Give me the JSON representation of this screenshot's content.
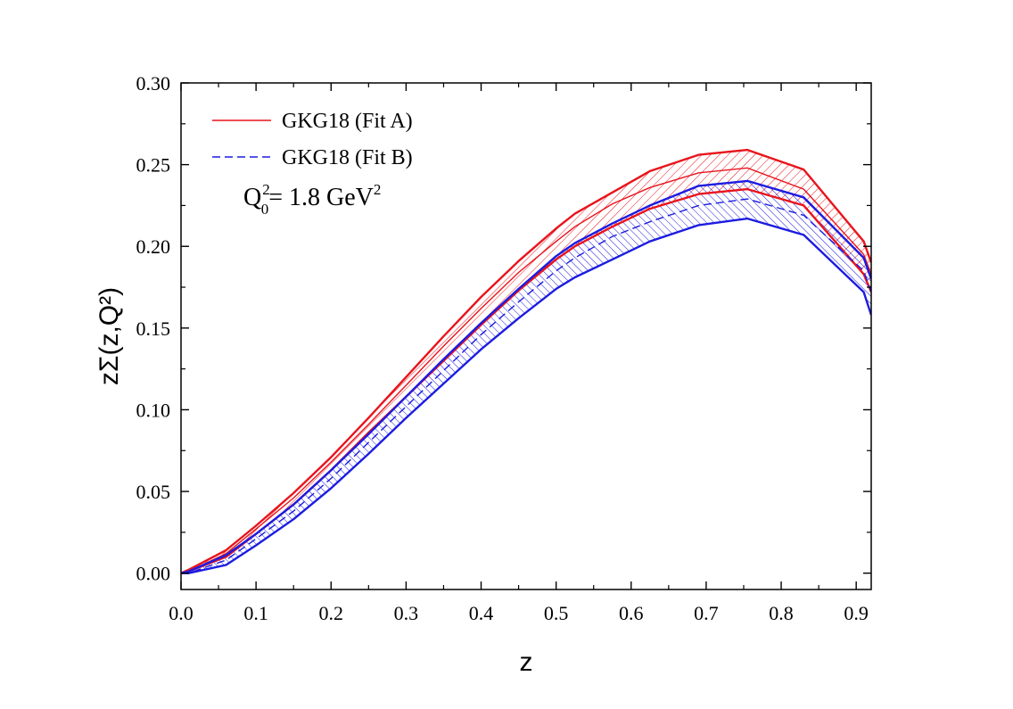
{
  "chart_data": {
    "type": "line",
    "xlabel": "z",
    "ylabel": "zΣ(z,Q²)",
    "xlim": [
      0.0,
      0.92
    ],
    "ylim": [
      -0.01,
      0.3
    ],
    "xticks": [
      "0.0",
      "0.1",
      "0.2",
      "0.3",
      "0.4",
      "0.5",
      "0.6",
      "0.7",
      "0.8",
      "0.9"
    ],
    "yticks": [
      "0.00",
      "0.05",
      "0.10",
      "0.15",
      "0.20",
      "0.25",
      "0.30"
    ],
    "grid": false,
    "legend_position": "top-left",
    "annotation": {
      "prefix": "Q",
      "superscript": "2",
      "subscript": "0",
      "value": "= 1.8 GeV",
      "value_superscript": "2"
    },
    "x": [
      0.0,
      0.01,
      0.06,
      0.1,
      0.15,
      0.2,
      0.25,
      0.3,
      0.35,
      0.4,
      0.45,
      0.5,
      0.525,
      0.575,
      0.625,
      0.69,
      0.755,
      0.83,
      0.91,
      0.92
    ],
    "series": [
      {
        "name": "GKG18 (Fit A)",
        "color": "#e8141c",
        "style": "solid",
        "central": [
          0.0,
          0.001,
          0.012,
          0.027,
          0.046,
          0.068,
          0.091,
          0.115,
          0.139,
          0.162,
          0.184,
          0.203,
          0.212,
          0.226,
          0.236,
          0.245,
          0.248,
          0.235,
          0.195,
          0.183
        ],
        "upper": [
          0.0,
          0.002,
          0.014,
          0.029,
          0.049,
          0.071,
          0.095,
          0.12,
          0.145,
          0.169,
          0.191,
          0.211,
          0.22,
          0.233,
          0.246,
          0.256,
          0.259,
          0.247,
          0.203,
          0.19
        ],
        "lower": [
          0.0,
          0.001,
          0.01,
          0.024,
          0.042,
          0.063,
          0.086,
          0.108,
          0.13,
          0.152,
          0.173,
          0.192,
          0.2,
          0.212,
          0.223,
          0.232,
          0.235,
          0.225,
          0.183,
          0.172
        ]
      },
      {
        "name": "GKG18 (Fit B)",
        "color": "#1c1ce0",
        "style": "dashed",
        "central": [
          0.0,
          0.0,
          0.008,
          0.021,
          0.038,
          0.058,
          0.08,
          0.102,
          0.124,
          0.146,
          0.166,
          0.185,
          0.193,
          0.206,
          0.215,
          0.225,
          0.229,
          0.219,
          0.185,
          0.172
        ],
        "upper": [
          0.0,
          0.001,
          0.011,
          0.024,
          0.042,
          0.063,
          0.085,
          0.108,
          0.131,
          0.153,
          0.174,
          0.194,
          0.202,
          0.214,
          0.225,
          0.237,
          0.24,
          0.23,
          0.193,
          0.18
        ],
        "lower": [
          0.0,
          0.0,
          0.005,
          0.017,
          0.033,
          0.052,
          0.073,
          0.095,
          0.116,
          0.137,
          0.156,
          0.174,
          0.181,
          0.192,
          0.203,
          0.213,
          0.217,
          0.207,
          0.172,
          0.158
        ]
      }
    ]
  }
}
